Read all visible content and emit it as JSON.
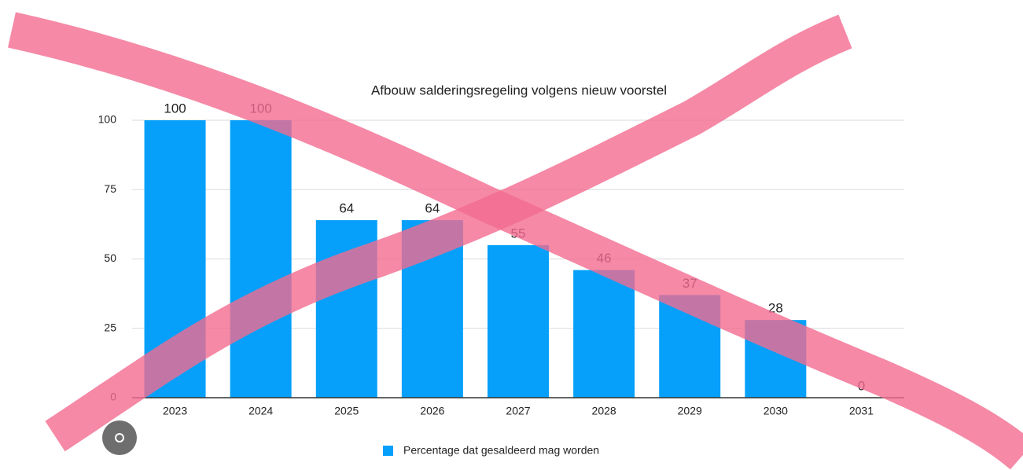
{
  "chart_data": {
    "type": "bar",
    "title": "Afbouw salderingsregeling volgens nieuw voorstel",
    "categories": [
      "2023",
      "2024",
      "2025",
      "2026",
      "2027",
      "2028",
      "2029",
      "2030",
      "2031"
    ],
    "series": [
      {
        "name": "Percentage dat gesaldeerd mag worden",
        "color": "#06a0fa",
        "values": [
          100,
          100,
          64,
          64,
          55,
          46,
          37,
          28,
          0
        ]
      }
    ],
    "ylim": [
      0,
      100
    ],
    "yticks": [
      0,
      25,
      50,
      75,
      100
    ],
    "grid": true,
    "legend": "bottom"
  }
}
